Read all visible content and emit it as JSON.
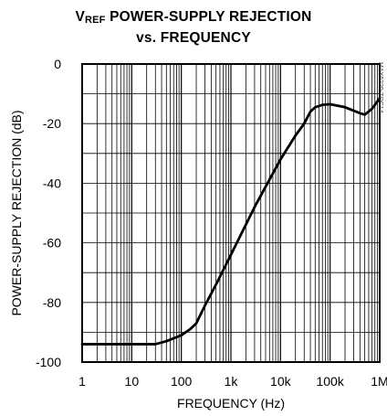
{
  "title_prefix": "V",
  "title_sub": "REF",
  "title_rest": " POWER-SUPPLY REJECTION",
  "title_line2": "vs. FREQUENCY",
  "side_code": "MAX6220-TOC14",
  "chart_data": {
    "type": "line",
    "title": "VREF POWER-SUPPLY REJECTION vs. FREQUENCY",
    "xlabel": "FREQUENCY (Hz)",
    "ylabel": "POWER-SUPPLY REJECTION (dB)",
    "xscale": "log",
    "xlim": [
      1,
      1000000
    ],
    "ylim": [
      -100,
      0
    ],
    "xticks": [
      1,
      10,
      100,
      1000,
      10000,
      100000,
      1000000
    ],
    "xtick_labels": [
      "1",
      "10",
      "100",
      "1k",
      "10k",
      "100k",
      "1M"
    ],
    "yticks": [
      0,
      -20,
      -40,
      -60,
      -80,
      -100
    ],
    "ytick_labels": [
      "0",
      "-20",
      "-40",
      "-60",
      "-80",
      "-100"
    ],
    "grid": true,
    "series": [
      {
        "x": [
          1,
          10,
          30,
          50,
          100,
          150,
          200,
          300,
          500,
          1000,
          3000,
          10000,
          20000,
          30000,
          40000,
          50000,
          70000,
          100000,
          200000,
          400000,
          500000,
          700000,
          1000000
        ],
        "y": [
          -94,
          -94,
          -94,
          -93,
          -91,
          -89,
          -87,
          -81,
          -74,
          -64,
          -48,
          -32,
          -24,
          -20,
          -16,
          -14.5,
          -13.7,
          -13.5,
          -14.5,
          -16.5,
          -17,
          -15,
          -11.5
        ]
      }
    ]
  }
}
